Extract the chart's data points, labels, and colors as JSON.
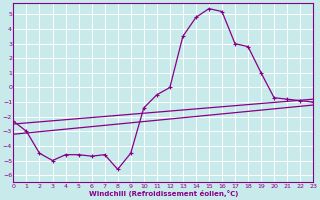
{
  "background_color": "#c8eaea",
  "grid_color": "#b0d8d8",
  "line_color": "#880088",
  "xlim": [
    0,
    23
  ],
  "ylim": [
    -6.5,
    5.8
  ],
  "xtick_vals": [
    0,
    1,
    2,
    3,
    4,
    5,
    6,
    7,
    8,
    9,
    10,
    11,
    12,
    13,
    14,
    15,
    16,
    17,
    18,
    19,
    20,
    21,
    22,
    23
  ],
  "ytick_vals": [
    -6,
    -5,
    -4,
    -3,
    -2,
    -1,
    0,
    1,
    2,
    3,
    4,
    5
  ],
  "xlabel": "Windchill (Refroidissement éolien,°C)",
  "curve1_x": [
    0,
    1,
    2,
    3,
    4,
    5,
    6,
    7,
    8,
    9,
    10,
    11,
    12,
    13,
    14,
    15,
    16,
    17,
    18,
    19,
    20,
    21,
    22,
    23
  ],
  "curve1_y": [
    -2.3,
    -3.0,
    -4.5,
    -5.0,
    -4.6,
    -4.6,
    -4.7,
    -4.6,
    -5.6,
    -4.5,
    -1.4,
    -0.5,
    0.0,
    3.5,
    4.8,
    5.4,
    5.2,
    3.0,
    2.8,
    1.0,
    -0.7,
    -0.8,
    -0.9,
    -1.0
  ],
  "line2_x": [
    0,
    23
  ],
  "line2_y": [
    -2.5,
    -0.8
  ],
  "line3_x": [
    0,
    23
  ],
  "line3_y": [
    -3.2,
    -1.2
  ]
}
